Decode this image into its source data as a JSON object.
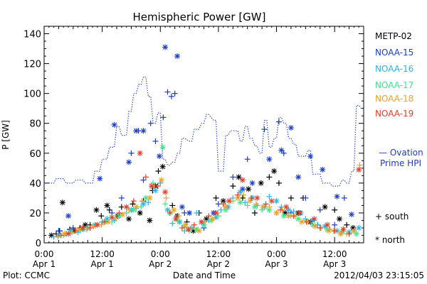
{
  "chart_data": {
    "type": "scatter",
    "title": "Hemispheric Power [GW]",
    "xlabel": "Date and Time",
    "ylabel": "P [GW]",
    "ylim": [
      0,
      145
    ],
    "yticks": [
      0,
      20,
      40,
      60,
      80,
      100,
      120,
      140
    ],
    "xlim_hours": [
      0,
      66
    ],
    "xticks": [
      {
        "h": 0,
        "line1": "0:00",
        "line2": "Apr 1"
      },
      {
        "h": 12,
        "line1": "12:00",
        "line2": "Apr 1"
      },
      {
        "h": 24,
        "line1": "0:00",
        "line2": "Apr 2"
      },
      {
        "h": 36,
        "line1": "12:00",
        "line2": "Apr 2"
      },
      {
        "h": 48,
        "line1": "0:00",
        "line2": "Apr 3"
      },
      {
        "h": 60,
        "line1": "12:00",
        "line2": "Apr 3"
      }
    ],
    "footer_left": "Plot: CCMC",
    "footer_right": "2012/04/03 23:15:05",
    "legend": {
      "satellites": [
        {
          "name": "METP-02",
          "color": "#000000"
        },
        {
          "name": "NOAA-15",
          "color": "#1a3cc8"
        },
        {
          "name": "NOAA-16",
          "color": "#28b4e6"
        },
        {
          "name": "NOAA-17",
          "color": "#3ce68c"
        },
        {
          "name": "NOAA-18",
          "color": "#f0a028"
        },
        {
          "name": "NOAA-19",
          "color": "#e63c28"
        }
      ],
      "ovation_line1": "— Ovation",
      "ovation_line2": "Prime HPI",
      "ovation_color": "#1a3cc8",
      "south_label": "+ south",
      "north_label": "* north"
    },
    "ovation": {
      "name": "Ovation Prime HPI",
      "x": [
        0,
        2,
        2.5,
        4,
        4.5,
        6,
        6.5,
        8,
        8.5,
        10,
        10.5,
        11.5,
        12,
        13,
        13.5,
        14.5,
        15,
        15.5,
        16,
        17,
        17.5,
        18,
        18.5,
        19,
        19.5,
        20,
        20.5,
        21,
        21.5,
        22,
        22.5,
        23,
        23.5,
        24,
        24.5,
        25,
        25.5,
        26,
        26.5,
        27,
        27.5,
        28,
        28.5,
        29,
        30,
        30.5,
        31,
        32,
        32.5,
        33,
        33.5,
        34,
        35,
        35.5,
        36,
        37,
        37.5,
        38,
        38.5,
        40,
        40.5,
        41,
        41.5,
        42,
        42.5,
        43,
        43.5,
        44,
        44.5,
        45,
        45.5,
        46,
        46.5,
        47,
        47.5,
        48,
        48.5,
        49,
        49.5,
        50,
        50.5,
        51,
        51.5,
        52,
        52.5,
        54,
        54.5,
        55,
        55.5,
        57,
        57.5,
        59,
        59.5,
        61,
        61.5,
        62,
        62.5,
        63,
        63.5,
        64,
        64.5,
        65,
        65.5
      ],
      "y": [
        40,
        40,
        43,
        43,
        40,
        40,
        42,
        42,
        40,
        40,
        48,
        48,
        56,
        56,
        64,
        64,
        78,
        78,
        72,
        72,
        88,
        88,
        100,
        100,
        106,
        106,
        111,
        111,
        98,
        98,
        80,
        80,
        87,
        87,
        56,
        56,
        52,
        52,
        54,
        54,
        60,
        60,
        70,
        70,
        68,
        68,
        76,
        76,
        80,
        80,
        86,
        86,
        82,
        82,
        48,
        48,
        72,
        72,
        75,
        75,
        68,
        68,
        78,
        78,
        70,
        70,
        65,
        65,
        60,
        60,
        82,
        82,
        64,
        64,
        70,
        70,
        84,
        84,
        80,
        80,
        70,
        70,
        66,
        66,
        58,
        58,
        62,
        62,
        46,
        46,
        40,
        40,
        38,
        38,
        42,
        42,
        40,
        40,
        48,
        48,
        92,
        92,
        90
      ]
    },
    "series": [
      {
        "name": "METP-02",
        "color": "#000000",
        "south": {
          "x": [
            2.5,
            3.2,
            5.3,
            7.4,
            9.5,
            11.8,
            13.5,
            16,
            18.3,
            20.5,
            22.4,
            23.6,
            26.5,
            29.5,
            32,
            35.5,
            39,
            41,
            43.5,
            46.5,
            48.5,
            51,
            53.5,
            56.5,
            60,
            62.5
          ],
          "y": [
            6,
            8,
            9,
            10,
            12,
            18,
            22,
            24,
            26,
            28,
            35,
            48,
            25,
            14,
            20,
            30,
            38,
            30,
            20,
            44,
            40,
            30,
            30,
            12,
            22,
            12
          ]
        },
        "north": {
          "x": [
            1.5,
            3.8,
            6.2,
            8.5,
            10.8,
            13,
            15.2,
            17.5,
            19.8,
            21.8,
            23,
            24.5,
            27.5,
            30.8,
            33.5,
            37,
            40.2,
            42.2,
            44.8,
            47.5,
            49.8,
            52.5,
            55,
            58,
            61,
            63.8
          ],
          "y": [
            5,
            27,
            8,
            12,
            22,
            25,
            18,
            16,
            20,
            15,
            38,
            51,
            18,
            8,
            16,
            28,
            44,
            36,
            40,
            48,
            20,
            20,
            14,
            24,
            16,
            10
          ]
        }
      },
      {
        "name": "NOAA-15",
        "color": "#1a3cc8",
        "south": {
          "x": [
            3,
            6,
            9,
            12,
            14,
            16,
            18,
            19.5,
            20.5,
            22,
            23,
            24.6,
            25.5,
            26.3,
            27,
            29,
            33,
            36,
            39,
            42,
            45.5,
            48.5,
            49.5,
            51,
            54,
            57,
            60,
            62
          ],
          "y": [
            8,
            10,
            10,
            14,
            20,
            30,
            60,
            75,
            42,
            80,
            68,
            84,
            101,
            98,
            100,
            20,
            10,
            26,
            44,
            56,
            76,
            81,
            60,
            20,
            30,
            22,
            12,
            30
          ]
        },
        "north": {
          "x": [
            5,
            11.5,
            14.5,
            17.5,
            19,
            20.5,
            23.8,
            25,
            27.5,
            28.5,
            30,
            35,
            41,
            43,
            46.5,
            49,
            51,
            52.5,
            55,
            57.5,
            60.5,
            63.5
          ],
          "y": [
            18,
            43,
            79,
            54,
            75,
            75,
            58,
            131,
            125,
            24,
            20,
            20,
            36,
            40,
            56,
            62,
            77,
            44,
            58,
            49,
            31,
            19
          ]
        }
      },
      {
        "name": "NOAA-16",
        "color": "#28b4e6",
        "south": {
          "x": [
            2,
            4.5,
            7,
            9.5,
            12,
            14.5,
            17,
            19,
            21.5,
            24,
            26.5,
            29,
            31.5,
            34,
            36.5,
            39,
            41.5,
            44,
            46.5,
            49,
            51.5,
            54,
            56.5,
            59,
            61.5,
            64
          ],
          "y": [
            4,
            6,
            7,
            10,
            14,
            15,
            20,
            23,
            27,
            40,
            13,
            8,
            20,
            15,
            22,
            30,
            27,
            25,
            31,
            24,
            21,
            16,
            12,
            9,
            7,
            8
          ]
        },
        "north": {
          "x": [
            3,
            5.5,
            8,
            10.5,
            13,
            15.5,
            18,
            20.5,
            23,
            25.5,
            28,
            30.5,
            33,
            35.5,
            38,
            40.5,
            43,
            45.5,
            48,
            50.5,
            53,
            55.5,
            58,
            60.5,
            63,
            65
          ],
          "y": [
            5,
            8,
            9,
            12,
            16,
            18,
            22,
            26,
            35,
            22,
            14,
            10,
            12,
            17,
            24,
            34,
            30,
            24,
            28,
            22,
            20,
            15,
            11,
            8,
            7,
            10
          ]
        }
      },
      {
        "name": "NOAA-17",
        "color": "#3ce68c",
        "south": {
          "x": [
            4,
            7.5,
            11,
            14,
            17,
            20,
            22.5,
            25,
            27.5,
            30,
            33,
            36,
            39,
            42,
            45,
            48,
            51,
            54,
            57,
            60,
            63
          ],
          "y": [
            5,
            8,
            12,
            14,
            20,
            24,
            40,
            26,
            15,
            8,
            12,
            18,
            28,
            25,
            22,
            20,
            18,
            15,
            10,
            8,
            6
          ]
        },
        "north": {
          "x": [
            5.5,
            9,
            12.5,
            15.5,
            18.5,
            21,
            24.5,
            26,
            29,
            31.5,
            34.5,
            37.5,
            40.5,
            43.5,
            46.5,
            49.5,
            52.5,
            55.5,
            58.5,
            61.5,
            64.5
          ],
          "y": [
            7,
            10,
            14,
            18,
            22,
            30,
            64,
            20,
            11,
            9,
            15,
            22,
            27,
            24,
            22,
            18,
            16,
            12,
            9,
            7,
            6
          ]
        }
      },
      {
        "name": "NOAA-18",
        "color": "#f0a028",
        "south": {
          "x": [
            2.8,
            5.8,
            8.8,
            11.8,
            14.8,
            17.5,
            20.2,
            22.8,
            25.2,
            27.8,
            30.5,
            33.2,
            35.8,
            38.5,
            41.2,
            43.8,
            46.5,
            49.2,
            51.8,
            54.5,
            57.2,
            59.8,
            62.5,
            65.2
          ],
          "y": [
            4,
            7,
            9,
            12,
            16,
            22,
            28,
            38,
            30,
            18,
            10,
            14,
            20,
            28,
            32,
            26,
            24,
            22,
            18,
            14,
            10,
            8,
            6,
            52
          ]
        },
        "north": {
          "x": [
            4.2,
            7.2,
            10.2,
            13.2,
            16.2,
            19,
            21.8,
            24.2,
            26.8,
            29.2,
            32,
            34.8,
            37.5,
            40,
            42.5,
            45.2,
            48,
            50.5,
            53.2,
            56,
            58.8,
            61.2,
            64
          ],
          "y": [
            6,
            9,
            11,
            14,
            19,
            24,
            30,
            42,
            22,
            12,
            8,
            16,
            24,
            30,
            28,
            24,
            20,
            18,
            14,
            11,
            8,
            6,
            8
          ]
        }
      },
      {
        "name": "NOAA-19",
        "color": "#e63c28",
        "south": {
          "x": [
            3.5,
            6.5,
            9.5,
            12.5,
            15.5,
            18.5,
            21,
            23.5,
            26,
            28.5,
            31,
            34,
            37,
            40,
            42.8,
            45.8,
            48.8,
            51.5,
            54.2,
            57,
            60,
            63
          ],
          "y": [
            5,
            8,
            10,
            14,
            20,
            28,
            44,
            38,
            20,
            10,
            12,
            18,
            26,
            32,
            30,
            26,
            22,
            18,
            14,
            10,
            8,
            6
          ]
        },
        "north": {
          "x": [
            5,
            8,
            11,
            14,
            17,
            19.8,
            22.2,
            25,
            27.2,
            29.8,
            32.5,
            35.5,
            38.2,
            41,
            44,
            47,
            50,
            52.8,
            55.8,
            58.5,
            61.8,
            65
          ],
          "y": [
            6,
            10,
            12,
            17,
            24,
            60,
            38,
            34,
            16,
            9,
            14,
            20,
            28,
            42,
            30,
            28,
            24,
            20,
            16,
            12,
            9,
            49
          ]
        }
      }
    ]
  }
}
